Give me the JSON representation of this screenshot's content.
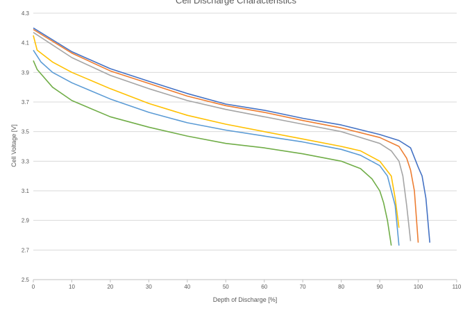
{
  "chart_data": {
    "type": "line",
    "title": "Cell Discharge Characteristics",
    "xlabel": "Depth of Discharge [%]",
    "ylabel": "Cell Voltage [V]",
    "xlim": [
      0,
      110
    ],
    "ylim": [
      2.5,
      4.3
    ],
    "xticks": [
      0,
      10,
      20,
      30,
      40,
      50,
      60,
      70,
      80,
      90,
      100,
      110
    ],
    "yticks": [
      "2.5",
      "2.7",
      "2.9",
      "3.1",
      "3.3",
      "3.5",
      "3.7",
      "3.9",
      "4.1",
      "4.3"
    ],
    "grid": "horizontal",
    "legend": "bottom (cut off)",
    "series": [
      {
        "color": "#4472C4",
        "x": [
          0,
          10,
          20,
          30,
          40,
          50,
          60,
          70,
          80,
          90,
          95,
          98,
          100,
          101,
          102,
          103
        ],
        "y": [
          4.2,
          4.04,
          3.925,
          3.84,
          3.757,
          3.686,
          3.644,
          3.59,
          3.545,
          3.48,
          3.44,
          3.39,
          3.26,
          3.2,
          3.05,
          2.75
        ]
      },
      {
        "color": "#ED7D31",
        "x": [
          0,
          10,
          20,
          30,
          40,
          50,
          60,
          70,
          80,
          90,
          95,
          97,
          98,
          99,
          100
        ],
        "y": [
          4.19,
          4.03,
          3.91,
          3.825,
          3.74,
          3.675,
          3.63,
          3.575,
          3.525,
          3.46,
          3.4,
          3.32,
          3.24,
          3.1,
          2.75
        ]
      },
      {
        "color": "#A5A5A5",
        "x": [
          0,
          10,
          20,
          30,
          40,
          50,
          60,
          70,
          80,
          90,
          93,
          95,
          96,
          97,
          98
        ],
        "y": [
          4.17,
          4.0,
          3.88,
          3.79,
          3.71,
          3.65,
          3.6,
          3.55,
          3.5,
          3.42,
          3.37,
          3.3,
          3.2,
          3.0,
          2.76
        ]
      },
      {
        "color": "#FFC000",
        "x": [
          0,
          1,
          5,
          10,
          20,
          30,
          40,
          50,
          60,
          70,
          80,
          85,
          90,
          93,
          94,
          95
        ],
        "y": [
          4.15,
          4.05,
          3.97,
          3.9,
          3.79,
          3.69,
          3.61,
          3.55,
          3.5,
          3.45,
          3.4,
          3.37,
          3.3,
          3.2,
          3.05,
          2.85
        ]
      },
      {
        "color": "#5B9BD5",
        "x": [
          0,
          2,
          5,
          10,
          20,
          30,
          40,
          50,
          60,
          70,
          80,
          85,
          90,
          92,
          94,
          95
        ],
        "y": [
          4.05,
          3.97,
          3.9,
          3.83,
          3.72,
          3.63,
          3.56,
          3.51,
          3.47,
          3.43,
          3.38,
          3.34,
          3.27,
          3.2,
          3.0,
          2.73
        ]
      },
      {
        "color": "#70AD47",
        "x": [
          0,
          1,
          5,
          10,
          20,
          30,
          40,
          50,
          60,
          70,
          80,
          85,
          88,
          90,
          91,
          92,
          93
        ],
        "y": [
          3.98,
          3.92,
          3.8,
          3.71,
          3.6,
          3.53,
          3.47,
          3.42,
          3.39,
          3.35,
          3.3,
          3.25,
          3.18,
          3.1,
          3.02,
          2.9,
          2.73
        ]
      }
    ]
  }
}
